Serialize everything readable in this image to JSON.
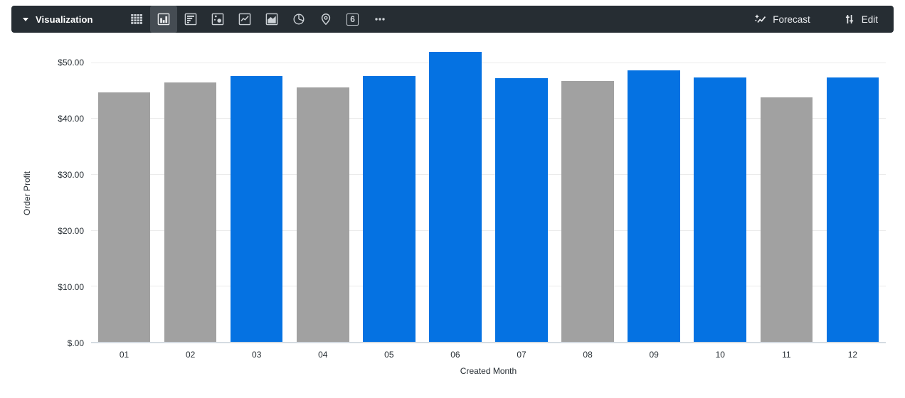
{
  "toolbar": {
    "visualization_label": "Visualization",
    "selected_viz": "column",
    "viz_types": [
      "table",
      "column",
      "bar",
      "scatter",
      "line",
      "area",
      "pie",
      "map",
      "single-value",
      "more"
    ],
    "single_value_glyph": "6",
    "forecast_label": "Forecast",
    "edit_label": "Edit",
    "background": "#262d33",
    "selected_cell_background": "#454c53",
    "icon_color": "#ccd1d6"
  },
  "chart_data": {
    "type": "bar",
    "title": "",
    "xlabel": "Created Month",
    "ylabel": "Order Profit",
    "categories": [
      "01",
      "02",
      "03",
      "04",
      "05",
      "06",
      "07",
      "08",
      "09",
      "10",
      "11",
      "12"
    ],
    "values": [
      44.6,
      46.4,
      47.5,
      45.5,
      47.5,
      51.9,
      47.2,
      46.7,
      48.6,
      47.3,
      43.7,
      47.3
    ],
    "bar_colors": [
      "gray",
      "gray",
      "blue",
      "gray",
      "blue",
      "blue",
      "blue",
      "gray",
      "blue",
      "blue",
      "gray",
      "blue"
    ],
    "palette": {
      "blue": "#0572e2",
      "gray": "#a1a1a1"
    },
    "y_ticks": [
      {
        "value": 0,
        "label": "$.00"
      },
      {
        "value": 10,
        "label": "$10.00"
      },
      {
        "value": 20,
        "label": "$20.00"
      },
      {
        "value": 30,
        "label": "$30.00"
      },
      {
        "value": 40,
        "label": "$40.00"
      },
      {
        "value": 50,
        "label": "$50.00"
      }
    ],
    "ylim": [
      0,
      53.5
    ],
    "grid": true,
    "legend": "none"
  }
}
